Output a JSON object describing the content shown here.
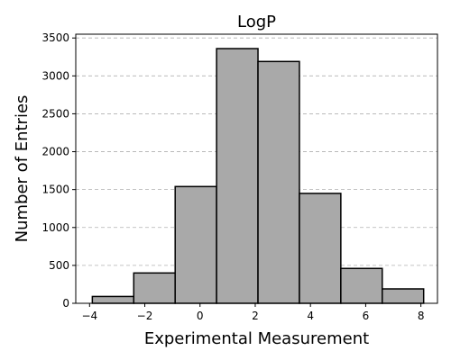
{
  "chart_data": {
    "type": "bar",
    "title": "LogP",
    "xlabel": "Experimental Measurement",
    "ylabel": "Number of Entries",
    "bins": [
      {
        "x0": -3.9,
        "x1": -2.4,
        "count": 90
      },
      {
        "x0": -2.4,
        "x1": -0.9,
        "count": 400
      },
      {
        "x0": -0.9,
        "x1": 0.6,
        "count": 1540
      },
      {
        "x0": 0.6,
        "x1": 2.1,
        "count": 3360
      },
      {
        "x0": 2.1,
        "x1": 3.6,
        "count": 3190
      },
      {
        "x0": 3.6,
        "x1": 5.1,
        "count": 1450
      },
      {
        "x0": 5.1,
        "x1": 6.6,
        "count": 460
      },
      {
        "x0": 6.6,
        "x1": 8.1,
        "count": 190
      }
    ],
    "xlim": [
      -4.5,
      8.6
    ],
    "ylim": [
      0,
      3550
    ],
    "xticks": [
      -4,
      -2,
      0,
      2,
      4,
      6,
      8
    ],
    "xtick_labels": [
      "−4",
      "−2",
      "0",
      "2",
      "4",
      "6",
      "8"
    ],
    "yticks": [
      0,
      500,
      1000,
      1500,
      2000,
      2500,
      3000,
      3500
    ],
    "ytick_labels": [
      "0",
      "500",
      "1000",
      "1500",
      "2000",
      "2500",
      "3000",
      "3500"
    ],
    "grid": "y-dashed",
    "colors": {
      "bar_fill": "#a9a9a9",
      "bar_edge": "#000000",
      "grid": "#b0b0b0"
    }
  }
}
